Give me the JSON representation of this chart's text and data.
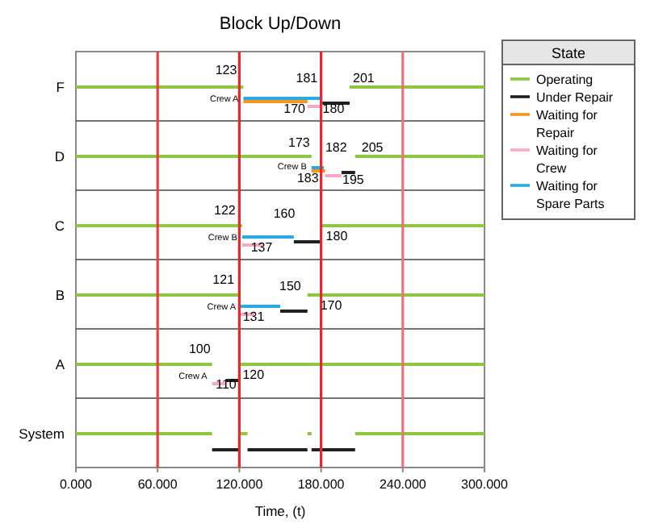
{
  "chart_data": {
    "type": "bar",
    "orientation": "horizontal",
    "title": "Block Up/Down",
    "xlabel": "Time, (t)",
    "legend_title": "State",
    "legend": "right",
    "categories": [
      "F",
      "D",
      "C",
      "B",
      "A",
      "System"
    ],
    "xlim": [
      0,
      300
    ],
    "xticks": [
      {
        "value": 0,
        "label": "0.000"
      },
      {
        "value": 60,
        "label": "60.000"
      },
      {
        "value": 120,
        "label": "120.000"
      },
      {
        "value": 180,
        "label": "180.000"
      },
      {
        "value": 240,
        "label": "240.000"
      },
      {
        "value": 300,
        "label": "300.000"
      }
    ],
    "series": [
      {
        "name": "Operating",
        "color": "#8dc63f",
        "base": [
          0,
          0,
          0,
          0,
          0,
          0
        ],
        "values": [
          123,
          173,
          122,
          121,
          100,
          100
        ]
      },
      {
        "color": "#8dc63f",
        "base": [
          201,
          205,
          180,
          170,
          120,
          120
        ],
        "values": [
          99,
          95,
          120,
          130,
          180,
          6
        ]
      },
      {
        "color": "#8dc63f",
        "base": [
          null,
          null,
          null,
          null,
          null,
          170
        ],
        "values": [
          null,
          null,
          null,
          null,
          null,
          3
        ]
      },
      {
        "color": "#8dc63f",
        "base": [
          null,
          null,
          null,
          null,
          null,
          205
        ],
        "values": [
          null,
          null,
          null,
          null,
          null,
          95
        ]
      },
      {
        "name": "Under Repair",
        "color": "#231f20",
        "base": [
          181,
          195,
          160,
          150,
          110,
          100
        ],
        "values": [
          20,
          10,
          20,
          20,
          10,
          20
        ]
      },
      {
        "color": "#231f20",
        "base": [
          null,
          null,
          null,
          null,
          null,
          126
        ],
        "values": [
          null,
          null,
          null,
          null,
          null,
          44
        ]
      },
      {
        "color": "#231f20",
        "base": [
          null,
          null,
          null,
          null,
          null,
          173
        ],
        "values": [
          null,
          null,
          null,
          null,
          null,
          32
        ]
      },
      {
        "name": "Waiting for Repair",
        "color": "#f7941d",
        "base": [
          123,
          173,
          null,
          null,
          null,
          null
        ],
        "values": [
          47,
          10,
          null,
          null,
          null,
          null
        ]
      },
      {
        "name": "Waiting for Crew",
        "color": "#f9a9c8",
        "base": [
          170,
          183,
          122,
          121,
          100,
          null
        ],
        "values": [
          10,
          12,
          15,
          10,
          10,
          null
        ]
      },
      {
        "name": "Waiting for Spare Parts",
        "color": "#29abe2",
        "base": [
          123,
          173,
          122,
          121,
          null,
          null
        ],
        "values": [
          58,
          9,
          38,
          29,
          null,
          null
        ]
      }
    ],
    "ref_lines": [
      {
        "axis": "x",
        "value": 60,
        "color": "#e8403f"
      },
      {
        "axis": "x",
        "value": 120,
        "color": "#e8282b"
      },
      {
        "axis": "x",
        "value": 180,
        "color": "#e8282b"
      },
      {
        "axis": "x",
        "value": 240,
        "color": "#f07075"
      }
    ],
    "annotations": [
      {
        "text": "123",
        "x": 123,
        "y": "F"
      },
      {
        "text": "Crew A",
        "x": 123,
        "y": "F"
      },
      {
        "text": "181",
        "x": 181,
        "y": "F"
      },
      "170",
      {
        "text": "180",
        "x": 180,
        "y": "F"
      },
      {
        "text": "201",
        "x": 201,
        "y": "F"
      },
      {
        "text": "173",
        "x": 173,
        "y": "D"
      },
      {
        "text": "Crew B",
        "x": 173,
        "y": "D"
      },
      {
        "text": "182",
        "x": 182,
        "y": "D"
      },
      {
        "text": "183",
        "x": 183,
        "y": "D"
      },
      "195",
      {
        "text": "205",
        "x": 205,
        "y": "D"
      },
      {
        "text": "122",
        "x": 122,
        "y": "C"
      },
      {
        "text": "Crew B",
        "x": 122,
        "y": "C"
      },
      "160",
      "137",
      {
        "text": "180",
        "x": 180,
        "y": "C"
      },
      {
        "text": "121",
        "x": 121,
        "y": "B"
      },
      {
        "text": "Crew A",
        "x": 121,
        "y": "B"
      },
      "150",
      "131",
      {
        "text": "170",
        "x": 170,
        "y": "B"
      },
      {
        "text": "100",
        "x": 100,
        "y": "A"
      },
      {
        "text": "Crew A",
        "x": 100,
        "y": "A"
      },
      "110",
      {
        "text": "120",
        "x": 120,
        "y": "A"
      }
    ]
  }
}
